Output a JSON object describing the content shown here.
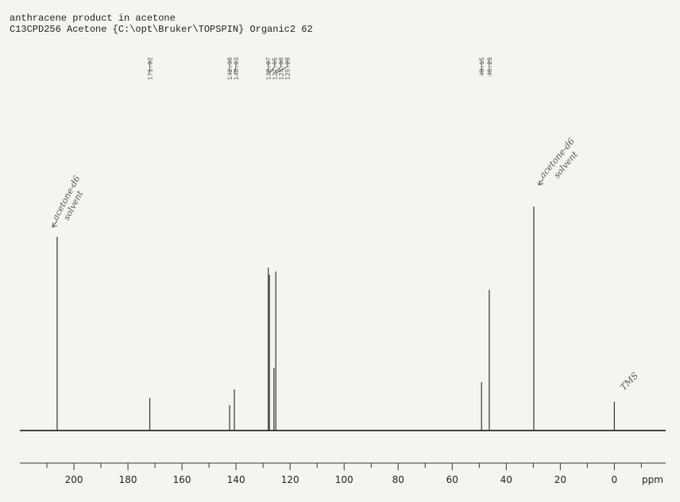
{
  "chart_data": {
    "type": "spectrum",
    "title": "anthracene product in acetone",
    "subtitle": "C13CPD256 Acetone {C:\\opt\\Bruker\\TOPSPIN} Organic2 62",
    "x_label": "ppm",
    "xlim": [
      220,
      -19
    ],
    "xticks": [
      200,
      180,
      160,
      140,
      120,
      100,
      80,
      60,
      40,
      20,
      0
    ],
    "x_minor_ticks": [
      210,
      190,
      170,
      150,
      130,
      110,
      90,
      70,
      50,
      30,
      10,
      -10
    ],
    "ylim": [
      0,
      100
    ],
    "color": "#333333",
    "x": [
      206.2,
      171.92,
      142.38,
      140.63,
      128.07,
      127.65,
      125.98,
      125.28,
      49.15,
      46.29,
      29.8,
      0
    ],
    "values": [
      86.5,
      14.5,
      11.3,
      18.4,
      72.7,
      69.5,
      28,
      71,
      21.6,
      62.8,
      100,
      12.8
    ],
    "peak_labels": [
      171.92,
      142.38,
      140.63,
      128.07,
      127.65,
      125.98,
      125.28,
      49.15,
      46.29
    ],
    "annotations": [
      {
        "text": "acetone-d6",
        "x": 206.2
      },
      {
        "text": "solvent",
        "x": 206.2
      },
      {
        "text": "acetone-d6",
        "x": 29.8
      },
      {
        "text": "solvent",
        "x": 29.8
      },
      {
        "text": "TMS",
        "x": 0
      }
    ]
  }
}
